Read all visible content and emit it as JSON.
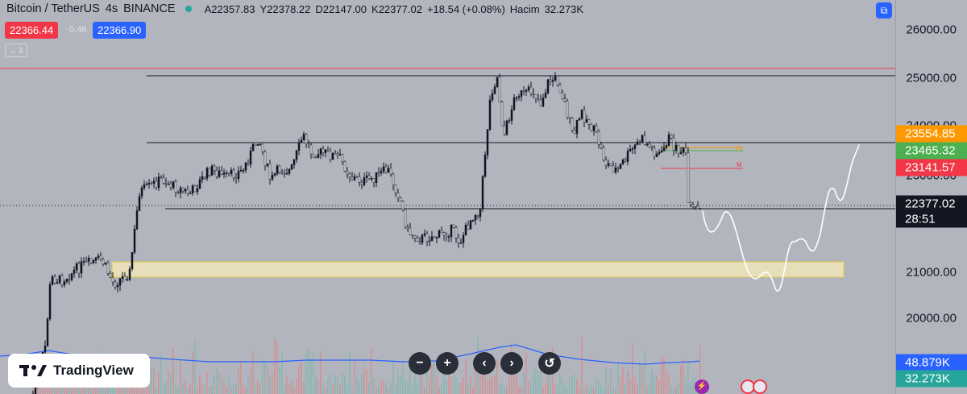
{
  "header": {
    "symbol": "Bitcoin / TetherUS",
    "interval": "4s",
    "exchange": "BINANCE",
    "ohlc": {
      "open": "A22357.83",
      "high": "Y22378.22",
      "low": "D22147.00",
      "close": "K22377.02",
      "change": "+18.54 (+0.08%)",
      "volume_label": "Hacim",
      "volume_value": "32.273K"
    }
  },
  "trade": {
    "sell_price": "22366.44",
    "spread": "0.46",
    "buy_price": "22366.90",
    "collapse_label": "⌄ 3"
  },
  "price_axis": {
    "ticks": [
      "26000.00",
      "25000.00",
      "24000.00",
      "23000.00",
      "21000.00",
      "20000.00"
    ],
    "badges": {
      "orange": "23554.85",
      "green": "23465.32",
      "red": "23141.57",
      "current": "22377.02",
      "countdown": "28:51",
      "vol_ma": "48.879K",
      "volume": "32.273K"
    }
  },
  "annotations": {
    "g_label": "G",
    "m_label": "M"
  },
  "logo": {
    "text": "TradingView"
  },
  "controls": [
    "zoom-out",
    "zoom-in",
    "scroll-left",
    "scroll-right",
    "reset"
  ],
  "colors": {
    "background": "#b2b5be",
    "candle": "#131722",
    "accent_blue": "#2962ff",
    "badge_orange": "#ff9800",
    "badge_green": "#4caf50",
    "badge_red": "#f23645",
    "zone_fill": "#f0e6b8",
    "zone_border": "#e6c84a",
    "projection": "#ffffff"
  }
}
